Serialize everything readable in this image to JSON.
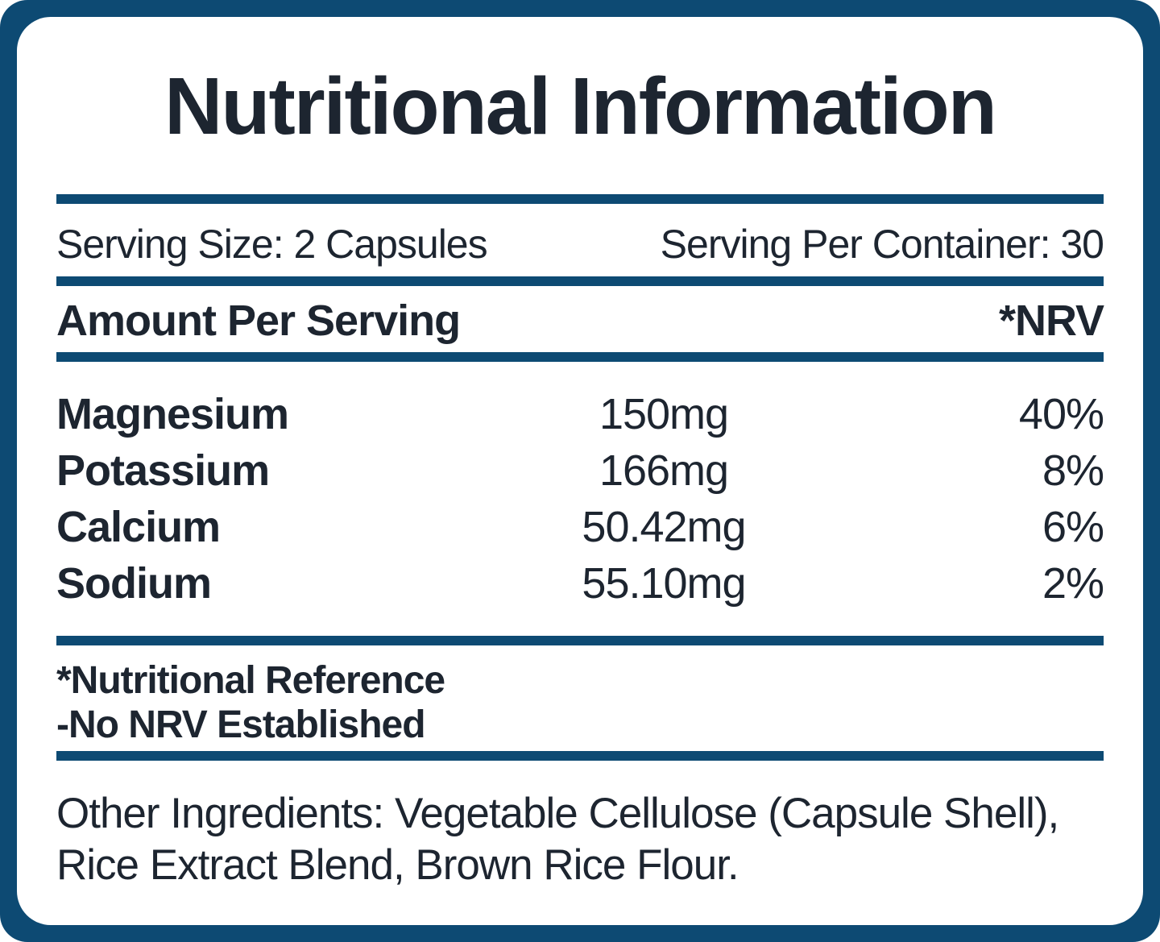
{
  "label": {
    "title": "Nutritional Information",
    "serving_size": "Serving Size: 2 Capsules",
    "serving_per_container": "Serving Per Container: 30",
    "columns": {
      "amount_header": "Amount Per Serving",
      "nrv_header": "*NRV"
    },
    "nutrients": [
      {
        "name": "Magnesium",
        "amount": "150mg",
        "nrv": "40%"
      },
      {
        "name": "Potassium",
        "amount": "166mg",
        "nrv": "8%"
      },
      {
        "name": "Calcium",
        "amount": "50.42mg",
        "nrv": "6%"
      },
      {
        "name": "Sodium",
        "amount": "55.10mg",
        "nrv": "2%"
      }
    ],
    "footnote_line1": "*Nutritional Reference",
    "footnote_line2": "-No NRV Established",
    "other_ingredients": "Other Ingredients: Vegetable Cellulose (Capsule Shell), Rice Extract Blend, Brown Rice Flour."
  },
  "colors": {
    "frame_navy": "#0d4a73",
    "text_dark": "#1d2530",
    "background": "#ffffff"
  }
}
